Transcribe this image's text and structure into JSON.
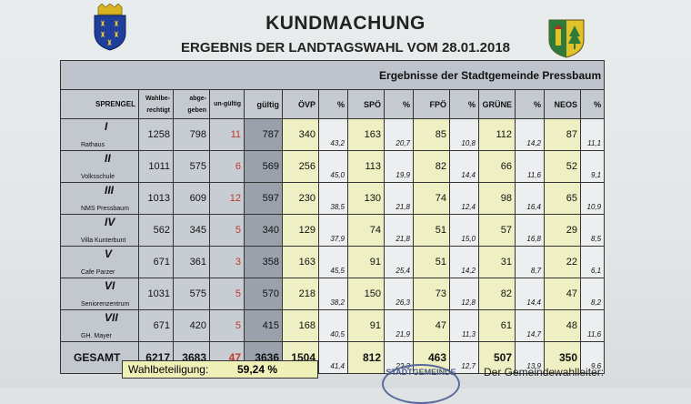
{
  "header": {
    "title": "KUNDMACHUNG",
    "subtitle": "ERGEBNIS DER LANDTAGSWAHL VOM 28.01.2018"
  },
  "table": {
    "caption": "Ergebnisse der Stadtgemeinde Pressbaum",
    "columns": [
      "SPRENGEL",
      "Wahlbe-rechtigt",
      "abge-geben",
      "un-gültig",
      "gültig",
      "ÖVP",
      "%",
      "SPÖ",
      "%",
      "FPÖ",
      "%",
      "GRÜNE",
      "%",
      "NEOS",
      "%"
    ],
    "rows": [
      {
        "roman": "I",
        "location": "Rathaus",
        "wahlberechtigt": "1258",
        "abgegeben": "798",
        "ungueltig": "11",
        "gueltig": "787",
        "oevp": "340",
        "oevp_pct": "43,2",
        "spoe": "163",
        "spoe_pct": "20,7",
        "fpoe": "85",
        "fpoe_pct": "10,8",
        "gruene": "112",
        "gruene_pct": "14,2",
        "neos": "87",
        "neos_pct": "11,1"
      },
      {
        "roman": "II",
        "location": "Volksschule",
        "wahlberechtigt": "1011",
        "abgegeben": "575",
        "ungueltig": "6",
        "gueltig": "569",
        "oevp": "256",
        "oevp_pct": "45,0",
        "spoe": "113",
        "spoe_pct": "19,9",
        "fpoe": "82",
        "fpoe_pct": "14,4",
        "gruene": "66",
        "gruene_pct": "11,6",
        "neos": "52",
        "neos_pct": "9,1"
      },
      {
        "roman": "III",
        "location": "NMS Pressbaum",
        "wahlberechtigt": "1013",
        "abgegeben": "609",
        "ungueltig": "12",
        "gueltig": "597",
        "oevp": "230",
        "oevp_pct": "38,5",
        "spoe": "130",
        "spoe_pct": "21,8",
        "fpoe": "74",
        "fpoe_pct": "12,4",
        "gruene": "98",
        "gruene_pct": "16,4",
        "neos": "65",
        "neos_pct": "10,9"
      },
      {
        "roman": "IV",
        "location": "Villa Kunterbunt",
        "wahlberechtigt": "562",
        "abgegeben": "345",
        "ungueltig": "5",
        "gueltig": "340",
        "oevp": "129",
        "oevp_pct": "37,9",
        "spoe": "74",
        "spoe_pct": "21,8",
        "fpoe": "51",
        "fpoe_pct": "15,0",
        "gruene": "57",
        "gruene_pct": "16,8",
        "neos": "29",
        "neos_pct": "8,5"
      },
      {
        "roman": "V",
        "location": "Cafe Parzer",
        "wahlberechtigt": "671",
        "abgegeben": "361",
        "ungueltig": "3",
        "gueltig": "358",
        "oevp": "163",
        "oevp_pct": "45,5",
        "spoe": "91",
        "spoe_pct": "25,4",
        "fpoe": "51",
        "fpoe_pct": "14,2",
        "gruene": "31",
        "gruene_pct": "8,7",
        "neos": "22",
        "neos_pct": "6,1"
      },
      {
        "roman": "VI",
        "location": "Seniorenzentrum",
        "wahlberechtigt": "1031",
        "abgegeben": "575",
        "ungueltig": "5",
        "gueltig": "570",
        "oevp": "218",
        "oevp_pct": "38,2",
        "spoe": "150",
        "spoe_pct": "26,3",
        "fpoe": "73",
        "fpoe_pct": "12,8",
        "gruene": "82",
        "gruene_pct": "14,4",
        "neos": "47",
        "neos_pct": "8,2"
      },
      {
        "roman": "VII",
        "location": "GH. Mayer",
        "wahlberechtigt": "671",
        "abgegeben": "420",
        "ungueltig": "5",
        "gueltig": "415",
        "oevp": "168",
        "oevp_pct": "40,5",
        "spoe": "91",
        "spoe_pct": "21,9",
        "fpoe": "47",
        "fpoe_pct": "11,3",
        "gruene": "61",
        "gruene_pct": "14,7",
        "neos": "48",
        "neos_pct": "11,6"
      }
    ],
    "total": {
      "label": "GESAMT",
      "wahlberechtigt": "6217",
      "abgegeben": "3683",
      "ungueltig": "47",
      "gueltig": "3636",
      "oevp": "1504",
      "oevp_pct": "41,4",
      "spoe": "812",
      "spoe_pct": "22,3",
      "fpoe": "463",
      "fpoe_pct": "12,7",
      "gruene": "507",
      "gruene_pct": "13,9",
      "neos": "350",
      "neos_pct": "9,6"
    }
  },
  "turnout": {
    "label": "Wahlbeteiligung:",
    "value": "59,24 %"
  },
  "stamp": {
    "text": "STADTGEMEINDE"
  },
  "footer": {
    "signer_label": "Der Gemeindewahlleiter:"
  },
  "colors": {
    "party_column": "#efefc4",
    "gueltig_column": "#9aa1ab",
    "invalid_text": "#c0392b",
    "turnout_box": "#efefb8"
  }
}
